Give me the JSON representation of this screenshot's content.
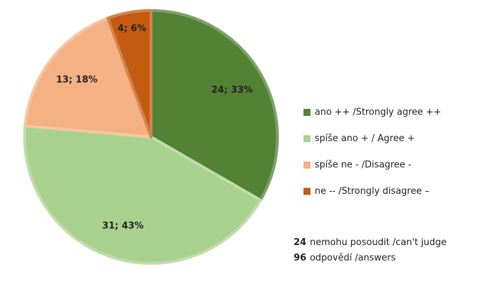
{
  "chart_data": {
    "type": "pie",
    "categories": [
      "ano ++ /Strongly agree ++",
      "spíše ano + / Agree +",
      "spíše ne - /Disagree -",
      "ne -- /Strongly disagree –"
    ],
    "values": [
      24,
      31,
      13,
      4
    ],
    "value_labels": [
      "24; 33%",
      "31; 43%",
      "13; 18%",
      "4; 6%"
    ],
    "colors": [
      "#548235",
      "#a9d18e",
      "#f4b183",
      "#c55a11"
    ],
    "annotations": [
      {
        "number": 24,
        "text": "nemohu posoudit /can't judge"
      },
      {
        "number": 96,
        "text": "odpovědí /answers"
      }
    ]
  }
}
